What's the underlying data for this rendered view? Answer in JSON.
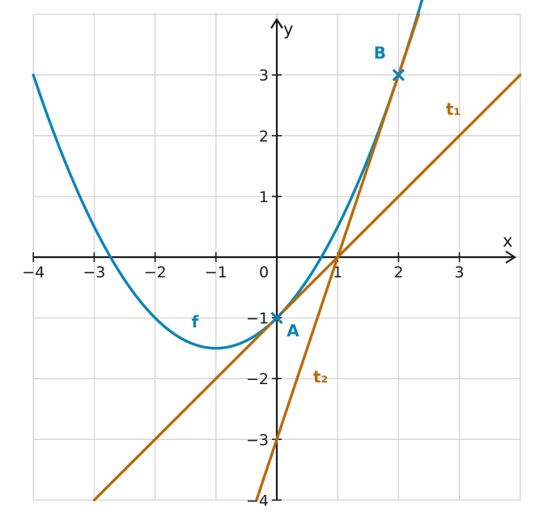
{
  "chart_data": {
    "type": "line",
    "title": "",
    "xlabel": "x",
    "ylabel": "y",
    "xlim": [
      -4,
      4
    ],
    "ylim": [
      -4,
      4
    ],
    "xticks": [
      {
        "value": -4,
        "label": "−4"
      },
      {
        "value": -3,
        "label": "−3"
      },
      {
        "value": -2,
        "label": "−2"
      },
      {
        "value": -1,
        "label": "−1"
      },
      {
        "value": 1,
        "label": "1"
      },
      {
        "value": 2,
        "label": "2"
      },
      {
        "value": 3,
        "label": "3"
      }
    ],
    "yticks": [
      {
        "value": -4,
        "label": "−4"
      },
      {
        "value": -3,
        "label": "−3"
      },
      {
        "value": -2,
        "label": "−2"
      },
      {
        "value": -1,
        "label": "−1"
      },
      {
        "value": 1,
        "label": "1"
      },
      {
        "value": 2,
        "label": "2"
      },
      {
        "value": 3,
        "label": "3"
      }
    ],
    "origin_label": "0",
    "grid": true,
    "series": [
      {
        "name": "f",
        "kind": "parabola",
        "a": 0.5,
        "b": 1,
        "c": -1,
        "x_range": [
          -4,
          2.4
        ],
        "color": "#0a85b8"
      },
      {
        "name": "t₁",
        "kind": "line",
        "slope": 1,
        "intercept": -1,
        "x_range": [
          -3,
          4
        ],
        "color": "#b86a0a"
      },
      {
        "name": "t₂",
        "kind": "line",
        "slope": 3,
        "intercept": -3,
        "x_range": [
          -0.33,
          2.33
        ],
        "color": "#b86a0a"
      }
    ],
    "points": [
      {
        "name": "A",
        "x": 0,
        "y": -1,
        "color": "#0a85b8"
      },
      {
        "name": "B",
        "x": 2,
        "y": 3,
        "color": "#0a85b8"
      }
    ]
  }
}
